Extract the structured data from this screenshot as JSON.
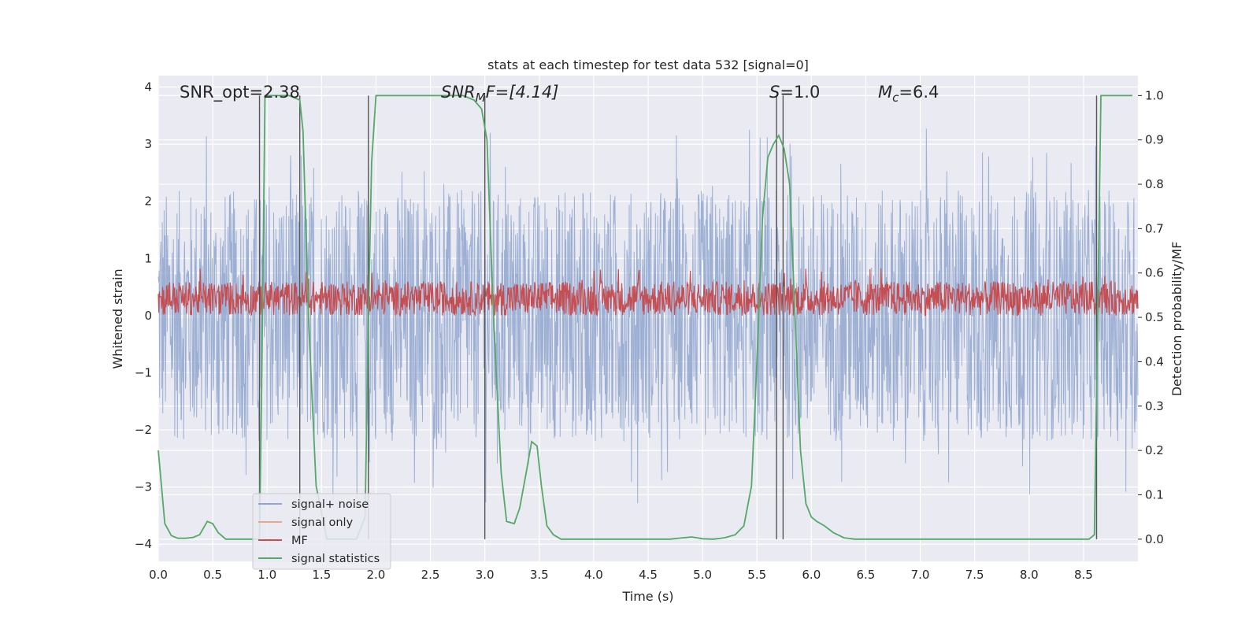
{
  "chart_data": {
    "type": "line",
    "title": "stats at each timestep for test data 532 [signal=0]",
    "xlabel": "Time (s)",
    "ylabel_left": "Whitened strain",
    "ylabel_right": "Detection probability/MF",
    "xlim": [
      0.0,
      9.0
    ],
    "ylim_left": [
      -4.3,
      4.2
    ],
    "ylim_right": [
      -0.05,
      1.045
    ],
    "x_ticks": [
      "0.0",
      "0.5",
      "1.0",
      "1.5",
      "2.0",
      "2.5",
      "3.0",
      "3.5",
      "4.0",
      "4.5",
      "5.0",
      "5.5",
      "6.0",
      "6.5",
      "7.0",
      "7.5",
      "8.0",
      "8.5"
    ],
    "x_tick_values": [
      0.0,
      0.5,
      1.0,
      1.5,
      2.0,
      2.5,
      3.0,
      3.5,
      4.0,
      4.5,
      5.0,
      5.5,
      6.0,
      6.5,
      7.0,
      7.5,
      8.0,
      8.5
    ],
    "y_left_ticks": [
      "−4",
      "−3",
      "−2",
      "−1",
      "0",
      "1",
      "2",
      "3",
      "4"
    ],
    "y_left_tick_values": [
      -4,
      -3,
      -2,
      -1,
      0,
      1,
      2,
      3,
      4
    ],
    "y_right_ticks": [
      "0.0",
      "0.1",
      "0.2",
      "0.3",
      "0.4",
      "0.5",
      "0.6",
      "0.7",
      "0.8",
      "0.9",
      "1.0"
    ],
    "y_right_tick_values": [
      0.0,
      0.1,
      0.2,
      0.3,
      0.4,
      0.5,
      0.6,
      0.7,
      0.8,
      0.9,
      1.0
    ],
    "grid": true,
    "legend_position": "lower-left",
    "annotations": {
      "snr_opt": "SNR_opt=2.38",
      "snr_mf_main": "SNR",
      "snr_mf_sub": "M",
      "snr_mf_rest": "F=[4.14]",
      "s_main": "S",
      "s_rest": "=1.0",
      "mc_main": "M",
      "mc_sub": "c",
      "mc_rest": "=6.4"
    },
    "series": [
      {
        "name": "signal+ noise",
        "color": "#8fa6cf",
        "axis": "left",
        "envelope": {
          "typical_abs": 2.2,
          "max_abs": 3.6
        }
      },
      {
        "name": "signal only",
        "color": "#e8a88c",
        "axis": "left",
        "values": []
      },
      {
        "name": "MF",
        "color": "#c44e52",
        "axis": "left",
        "envelope": {
          "center": 0.3,
          "typical_amplitude": 0.3,
          "max": 0.95
        }
      },
      {
        "name": "signal statistics",
        "color": "#55a868",
        "axis": "right",
        "x": [
          0.0,
          0.06,
          0.12,
          0.18,
          0.25,
          0.32,
          0.38,
          0.45,
          0.5,
          0.55,
          0.62,
          0.72,
          0.85,
          0.93,
          0.95,
          0.98,
          1.05,
          1.2,
          1.3,
          1.33,
          1.38,
          1.45,
          1.55,
          1.7,
          1.82,
          1.9,
          1.93,
          1.96,
          2.0,
          2.05,
          2.5,
          2.8,
          2.9,
          2.97,
          3.02,
          3.08,
          3.15,
          3.2,
          3.27,
          3.32,
          3.38,
          3.43,
          3.48,
          3.52,
          3.57,
          3.63,
          3.7,
          3.8,
          4.0,
          4.5,
          4.7,
          4.9,
          5.0,
          5.1,
          5.2,
          5.3,
          5.38,
          5.45,
          5.5,
          5.55,
          5.6,
          5.65,
          5.7,
          5.75,
          5.8,
          5.85,
          5.9,
          5.95,
          6.0,
          6.05,
          6.12,
          6.2,
          6.3,
          6.4,
          6.5,
          7.0,
          7.5,
          8.0,
          8.4,
          8.55,
          8.6,
          8.63,
          8.66,
          8.72,
          8.95
        ],
        "values": [
          0.2,
          0.035,
          0.008,
          0.002,
          0.002,
          0.004,
          0.01,
          0.04,
          0.035,
          0.015,
          0.0,
          0.0,
          0.0,
          0.0,
          0.35,
          1.0,
          1.0,
          1.0,
          0.99,
          0.92,
          0.5,
          0.12,
          0.0,
          0.0,
          0.0,
          0.05,
          0.5,
          0.85,
          1.0,
          1.0,
          1.0,
          1.0,
          0.99,
          0.97,
          0.9,
          0.5,
          0.15,
          0.04,
          0.035,
          0.07,
          0.15,
          0.22,
          0.21,
          0.12,
          0.03,
          0.01,
          0.0,
          0.0,
          0.0,
          0.0,
          0.0,
          0.005,
          0.001,
          0.0,
          0.003,
          0.01,
          0.03,
          0.12,
          0.4,
          0.72,
          0.86,
          0.89,
          0.91,
          0.88,
          0.8,
          0.5,
          0.2,
          0.08,
          0.05,
          0.04,
          0.03,
          0.015,
          0.003,
          0.0,
          0.0,
          0.0,
          0.0,
          0.0,
          0.0,
          0.0,
          0.01,
          0.5,
          1.0,
          1.0,
          1.0
        ]
      }
    ],
    "vertical_markers": [
      0.93,
      1.3,
      1.93,
      3.0,
      5.68,
      5.74,
      8.62
    ]
  }
}
